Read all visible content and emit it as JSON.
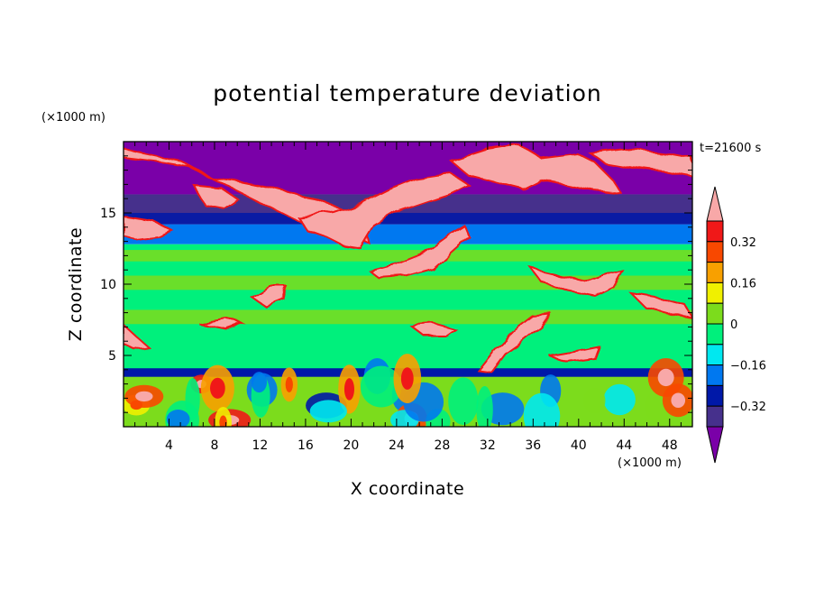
{
  "chart_data": {
    "type": "heatmap",
    "title": "potential temperature deviation",
    "xlabel": "X coordinate",
    "ylabel": "Z coordinate",
    "x_unit": "(×1000 m)",
    "y_unit": "(×1000 m)",
    "time_label": "t=21600 s",
    "xlim": [
      0,
      50
    ],
    "ylim": [
      0,
      20
    ],
    "x_ticks": [
      "4",
      "8",
      "12",
      "16",
      "20",
      "24",
      "28",
      "32",
      "36",
      "40",
      "44",
      "48"
    ],
    "y_ticks": [
      "5",
      "10",
      "15"
    ],
    "colorbar": {
      "levels": [
        -0.4,
        -0.32,
        -0.24,
        -0.16,
        -0.08,
        0,
        0.08,
        0.16,
        0.24,
        0.32,
        0.4
      ],
      "tick_labels": [
        "0.32",
        "0.16",
        "0",
        "−0.16",
        "−0.32"
      ],
      "tick_values": [
        0.32,
        0.16,
        0,
        -0.16,
        -0.32
      ],
      "colors": [
        "#7a00a8",
        "#46308c",
        "#0018a8",
        "#0078f0",
        "#00e8f0",
        "#00f07c",
        "#7cdc1c",
        "#f0f000",
        "#f8a000",
        "#f84800",
        "#f01818",
        "#f8a8a8"
      ],
      "extend": "both"
    },
    "bands": [
      {
        "z": [
          16.3,
          20
        ],
        "value": -0.45,
        "description_color": "#7a00a8"
      },
      {
        "z": [
          14.2,
          16.3
        ],
        "value": -0.38
      },
      {
        "z": [
          12.8,
          14.2
        ],
        "value": -0.2
      },
      {
        "z": [
          4,
          12.8
        ],
        "value": -0.05
      },
      {
        "z": [
          0,
          4
        ],
        "value": 0.05
      }
    ]
  }
}
